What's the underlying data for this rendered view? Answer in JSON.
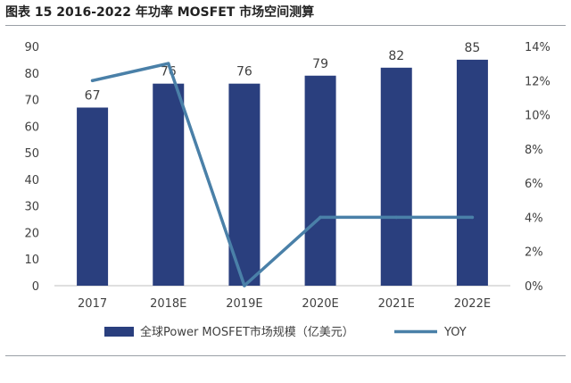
{
  "title": "图表 15 2016-2022 年功率 MOSFET 市场空间测算",
  "chart_data": {
    "type": "bar",
    "categories": [
      "2017",
      "2018E",
      "2019E",
      "2020E",
      "2021E",
      "2022E"
    ],
    "series": [
      {
        "name": "全球Power MOSFET市场规模（亿美元）",
        "type": "bar",
        "axis": "left",
        "color": "#2a3f7e",
        "values": [
          67,
          76,
          76,
          79,
          82,
          85
        ]
      },
      {
        "name": "YOY",
        "type": "line",
        "axis": "right",
        "color": "#4a80a8",
        "values": [
          12.0,
          13.0,
          0.0,
          4.0,
          4.0,
          4.0
        ]
      }
    ],
    "left_axis": {
      "min": 0,
      "max": 90,
      "step": 10,
      "tick_labels": [
        "0",
        "10",
        "20",
        "30",
        "40",
        "50",
        "60",
        "70",
        "80",
        "90"
      ]
    },
    "right_axis": {
      "min": 0,
      "max": 14,
      "step": 2,
      "tick_labels": [
        "0%",
        "2%",
        "4%",
        "6%",
        "8%",
        "10%",
        "12%",
        "14%"
      ]
    },
    "data_labels": [
      "67",
      "76",
      "76",
      "79",
      "82",
      "85"
    ],
    "grid": false,
    "legend_position": "bottom"
  }
}
